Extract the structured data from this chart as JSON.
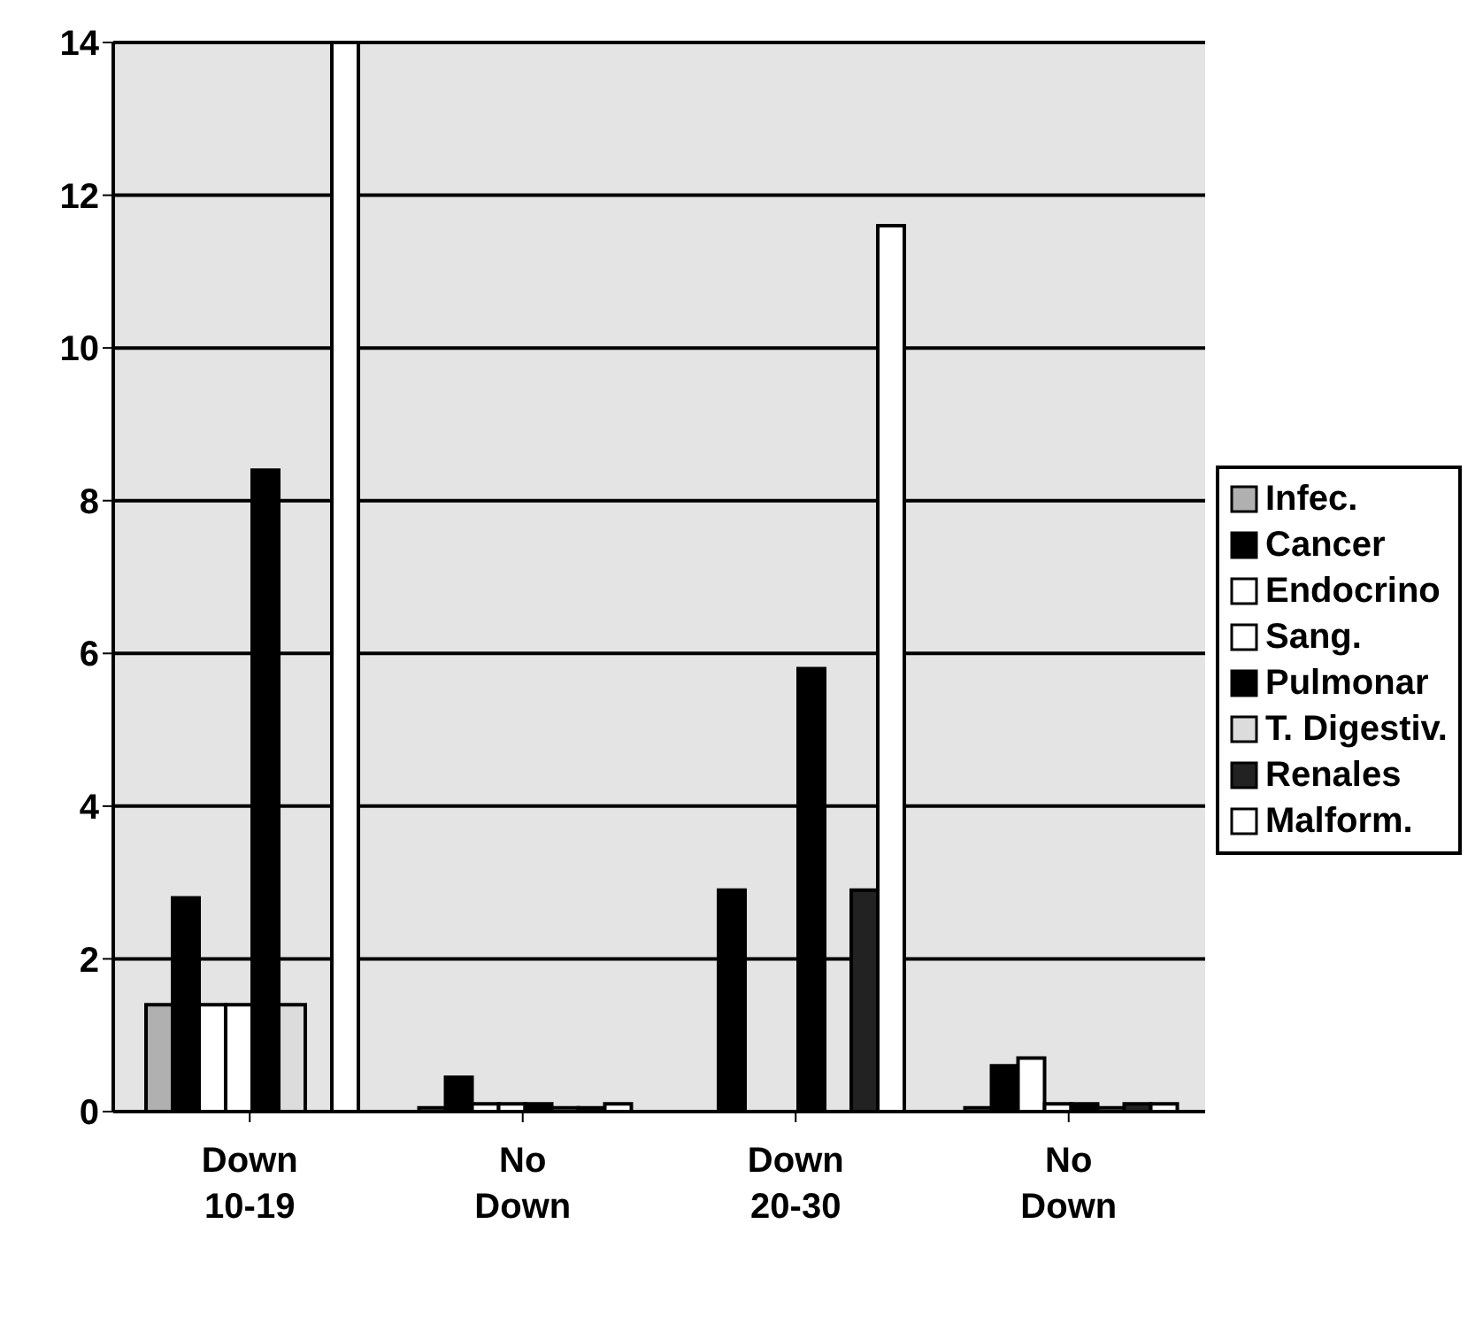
{
  "chart_data": {
    "type": "bar",
    "categories": [
      "Down 10-19",
      "No Down",
      "Down 20-30",
      "No Down"
    ],
    "series": [
      {
        "name": "Infec.",
        "color": "#b0b0b0",
        "values": [
          1.4,
          0.05,
          0,
          0.05
        ]
      },
      {
        "name": "Cancer",
        "color": "#000000",
        "values": [
          2.8,
          0.45,
          2.9,
          0.6
        ]
      },
      {
        "name": "Endocrino",
        "color": "#ffffff",
        "values": [
          1.4,
          0.1,
          0,
          0.7
        ]
      },
      {
        "name": "Sang.",
        "color": "#ffffff",
        "values": [
          1.4,
          0.1,
          0,
          0.1
        ]
      },
      {
        "name": "Pulmonar",
        "color": "#000000",
        "values": [
          8.4,
          0.1,
          5.8,
          0.1
        ]
      },
      {
        "name": "T. Digestiv.",
        "color": "#dcdcdc",
        "values": [
          1.4,
          0.05,
          0,
          0.05
        ]
      },
      {
        "name": "Renales",
        "color": "#222222",
        "values": [
          0,
          0.05,
          2.9,
          0.1
        ]
      },
      {
        "name": "Malform.",
        "color": "#ffffff",
        "values": [
          14,
          0.1,
          11.6,
          0.1
        ]
      }
    ],
    "ylim": [
      0,
      14
    ],
    "yticks": [
      0,
      2,
      4,
      6,
      8,
      10,
      12,
      14
    ],
    "grid": "y",
    "legend": "right"
  }
}
